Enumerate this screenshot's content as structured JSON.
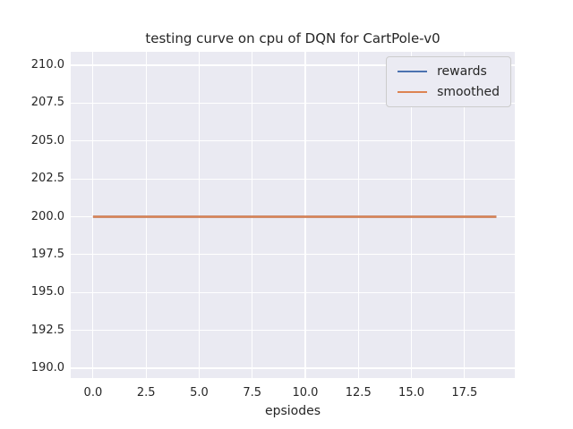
{
  "figure": {
    "background": "#ffffff",
    "plot_background": "#eaeaf2",
    "grid_color": "#ffffff",
    "text_color": "#262626",
    "legend_background": "#ebebf3",
    "legend_border": "#cccccc"
  },
  "chart_data": {
    "type": "line",
    "title": "testing curve on cpu of DQN for CartPole-v0",
    "xlabel": "epsiodes",
    "ylabel": "",
    "grid": true,
    "legend_position": "upper right",
    "x_axis": {
      "ticks": [
        0,
        2.5,
        5,
        7.5,
        10,
        12.5,
        15,
        17.5
      ],
      "tick_labels": [
        "0.0",
        "2.5",
        "5.0",
        "7.5",
        "10.0",
        "12.5",
        "15.0",
        "17.5"
      ],
      "lim": [
        -1.05,
        19.87
      ]
    },
    "y_axis": {
      "ticks": [
        190,
        192.5,
        195,
        197.5,
        200,
        202.5,
        205,
        207.5,
        210
      ],
      "tick_labels": [
        "190.0",
        "192.5",
        "195.0",
        "197.5",
        "200.0",
        "202.5",
        "205.0",
        "207.5",
        "210.0"
      ],
      "lim": [
        189.35,
        210.89
      ]
    },
    "x": [
      0,
      1,
      2,
      3,
      4,
      5,
      6,
      7,
      8,
      9,
      10,
      11,
      12,
      13,
      14,
      15,
      16,
      17,
      18,
      19
    ],
    "series": [
      {
        "name": "rewards",
        "color": "#4c72b0",
        "values": [
          200,
          200,
          200,
          200,
          200,
          200,
          200,
          200,
          200,
          200,
          200,
          200,
          200,
          200,
          200,
          200,
          200,
          200,
          200,
          200
        ]
      },
      {
        "name": "smoothed",
        "color": "#dd8452",
        "values": [
          200,
          200,
          200,
          200,
          200,
          200,
          200,
          200,
          200,
          200,
          200,
          200,
          200,
          200,
          200,
          200,
          200,
          200,
          200,
          200
        ]
      }
    ]
  }
}
